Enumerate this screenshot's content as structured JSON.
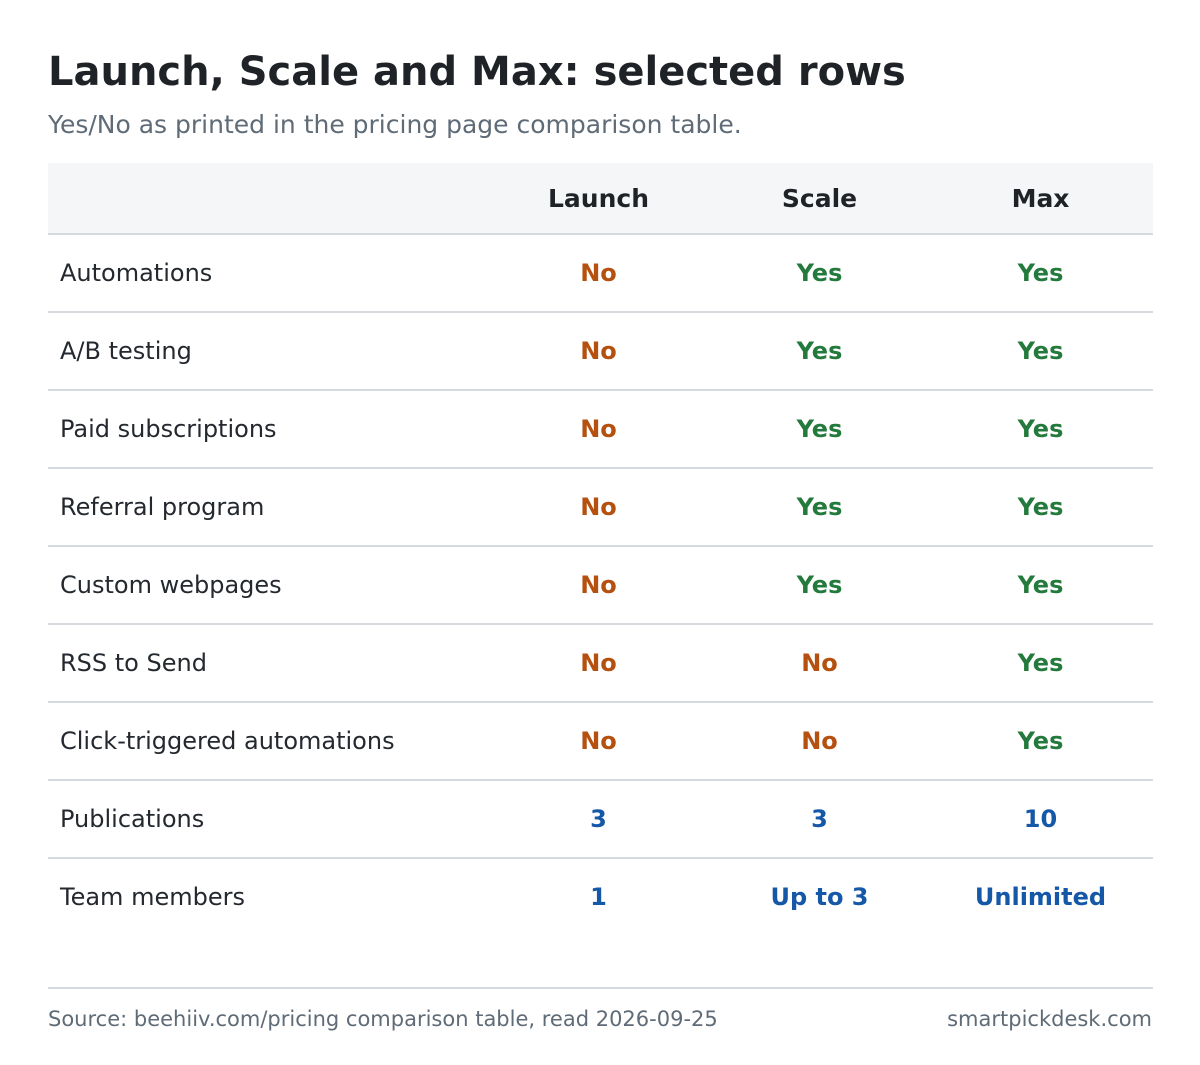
{
  "chart_data": {
    "type": "table",
    "title": "Launch, Scale and Max: selected rows",
    "subtitle": "Yes/No as printed in the pricing page comparison table.",
    "columns": [
      "",
      "Launch",
      "Scale",
      "Max"
    ],
    "rows": [
      {
        "feature": "Automations",
        "values": [
          "No",
          "Yes",
          "Yes"
        ]
      },
      {
        "feature": "A/B testing",
        "values": [
          "No",
          "Yes",
          "Yes"
        ]
      },
      {
        "feature": "Paid subscriptions",
        "values": [
          "No",
          "Yes",
          "Yes"
        ]
      },
      {
        "feature": "Referral program",
        "values": [
          "No",
          "Yes",
          "Yes"
        ]
      },
      {
        "feature": "Custom webpages",
        "values": [
          "No",
          "Yes",
          "Yes"
        ]
      },
      {
        "feature": "RSS to Send",
        "values": [
          "No",
          "No",
          "Yes"
        ]
      },
      {
        "feature": "Click-triggered automations",
        "values": [
          "No",
          "No",
          "Yes"
        ]
      },
      {
        "feature": "Publications",
        "values": [
          "3",
          "3",
          "10"
        ]
      },
      {
        "feature": "Team members",
        "values": [
          "1",
          "Up to 3",
          "Unlimited"
        ]
      }
    ],
    "colors": {
      "no": "#b5500f",
      "yes": "#237a3c",
      "number": "#1658a8"
    }
  },
  "footer": {
    "source": "Source: beehiiv.com/pricing comparison table, read 2026-09-25",
    "brand": "smartpickdesk.com"
  }
}
